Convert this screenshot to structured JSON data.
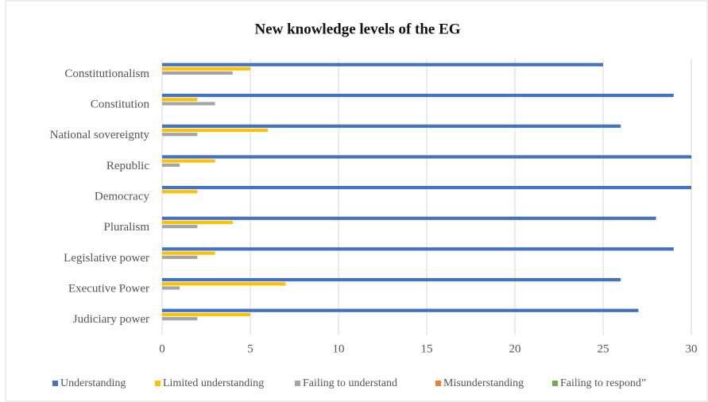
{
  "chart_data": {
    "type": "hbar",
    "title": "New knowledge levels of the EG",
    "categories": [
      "Constitutionalism",
      "Constitution",
      "National sovereignty",
      "Republic",
      "Democracy",
      "Pluralism",
      "Legislative power",
      "Executive Power",
      "Judiciary power"
    ],
    "series": [
      {
        "name": "Understanding",
        "color": "#4472c4",
        "values": [
          25,
          29,
          26,
          30,
          30,
          28,
          29,
          26,
          27
        ]
      },
      {
        "name": "Limited understanding",
        "color": "#ffc000",
        "values": [
          5,
          2,
          6,
          3,
          2,
          4,
          3,
          7,
          5
        ]
      },
      {
        "name": "Failing to understand",
        "color": "#a5a5a5",
        "values": [
          4,
          3,
          2,
          1,
          0,
          2,
          2,
          1,
          2
        ]
      },
      {
        "name": "Misunderstanding",
        "color": "#ed7d31",
        "values": [
          0,
          0,
          0,
          0,
          0,
          0,
          0,
          0,
          0
        ]
      },
      {
        "name": "Failing to respond”",
        "color": "#70ad47",
        "values": [
          0,
          0,
          0,
          0,
          0,
          0,
          0,
          0,
          0
        ]
      }
    ],
    "xlim": [
      0,
      30
    ],
    "xticks": [
      0,
      5,
      10,
      15,
      20,
      25,
      30
    ],
    "grid": true,
    "legend": "bottom"
  }
}
